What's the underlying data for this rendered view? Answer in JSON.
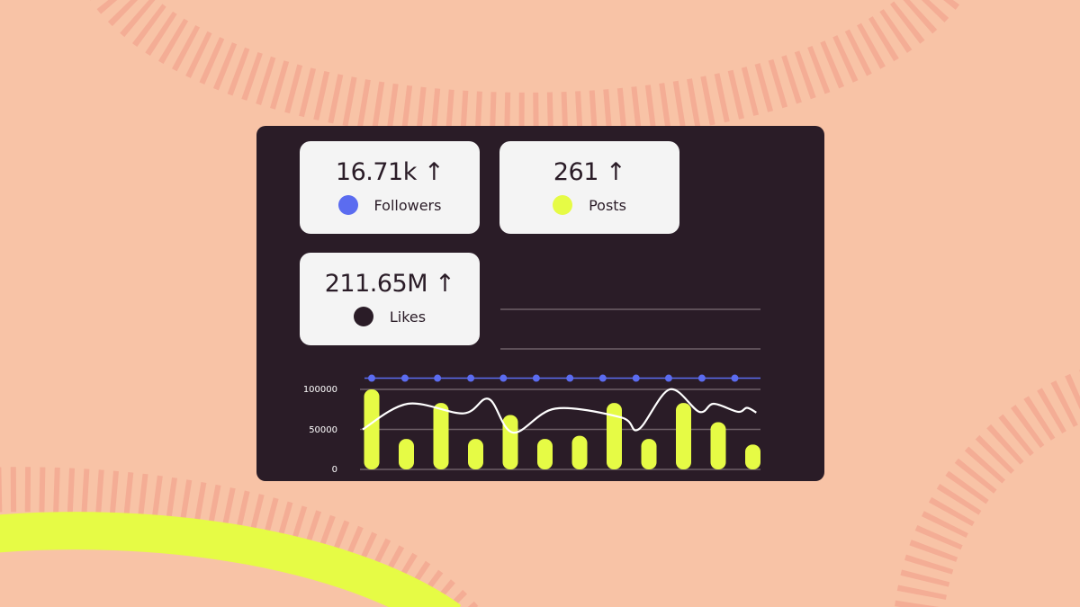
{
  "stats": [
    {
      "value": "16.71k",
      "arrow": "↑",
      "label": "Followers",
      "color": "#5b6cf0"
    },
    {
      "value": "261",
      "arrow": "↑",
      "label": "Posts",
      "color": "#e6fb45"
    },
    {
      "value": "211.65M",
      "arrow": "↑",
      "label": "Likes",
      "color": "#2a1c27"
    }
  ],
  "colors": {
    "background": "#f8c3a6",
    "panel": "#2a1c27",
    "bars": "#e6fb45",
    "line": "#ffffff",
    "dots": "#5b6cf0"
  },
  "chart_data": {
    "type": "bar",
    "ylim": [
      0,
      100000
    ],
    "yticks": [
      "0",
      "50000",
      "100000"
    ],
    "grid": true,
    "bars": {
      "values": [
        100000,
        38000,
        83000,
        38000,
        68000,
        38000,
        42000,
        83000,
        38000,
        83000,
        59000,
        31000
      ]
    },
    "line": {
      "x": [
        -0.26,
        1.04,
        2.65,
        3.38,
        4.08,
        5.3,
        7.2,
        7.7,
        8.6,
        9.45,
        9.87,
        10.57,
        10.83,
        11.1
      ],
      "y": [
        50000,
        82000,
        70000,
        88000,
        46000,
        76000,
        65000,
        50000,
        100000,
        72000,
        82000,
        72000,
        77000,
        71000
      ]
    },
    "dots": {
      "x": [
        0,
        0.96,
        1.9,
        2.86,
        3.8,
        4.75,
        5.72,
        6.67,
        7.63,
        8.57,
        9.53,
        10.48
      ],
      "y": [
        114000,
        114000,
        114000,
        114000,
        114000,
        114000,
        114000,
        114000,
        114000,
        114000,
        114000,
        114000
      ]
    }
  }
}
